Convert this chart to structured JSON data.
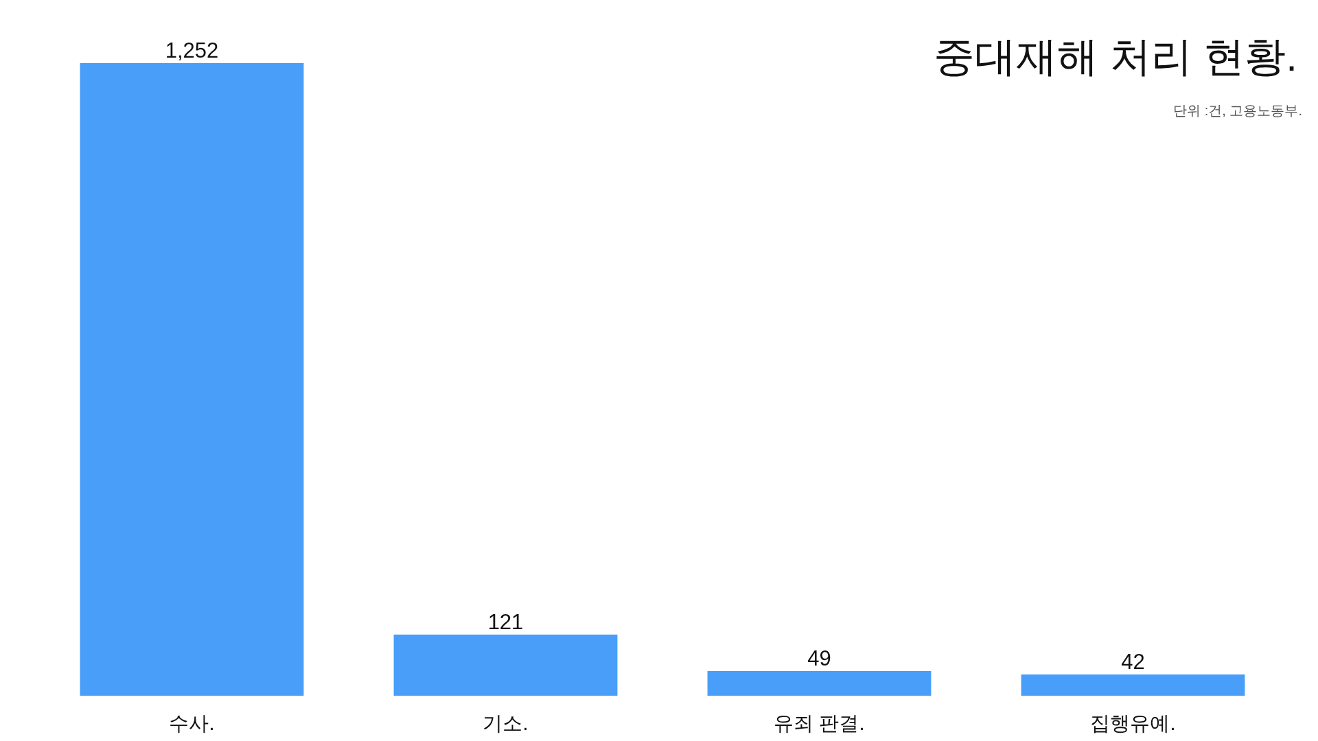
{
  "chart_data": {
    "type": "bar",
    "title": "중대재해 처리 현황.",
    "subtitle": "단위 :건, 고용노동부.",
    "categories": [
      "수사.",
      "기소.",
      "유죄 판결.",
      "집행유예."
    ],
    "values": [
      1252,
      121,
      49,
      42
    ],
    "value_labels": [
      "1,252",
      "121",
      "49",
      "42"
    ],
    "color": "#489ef8"
  }
}
